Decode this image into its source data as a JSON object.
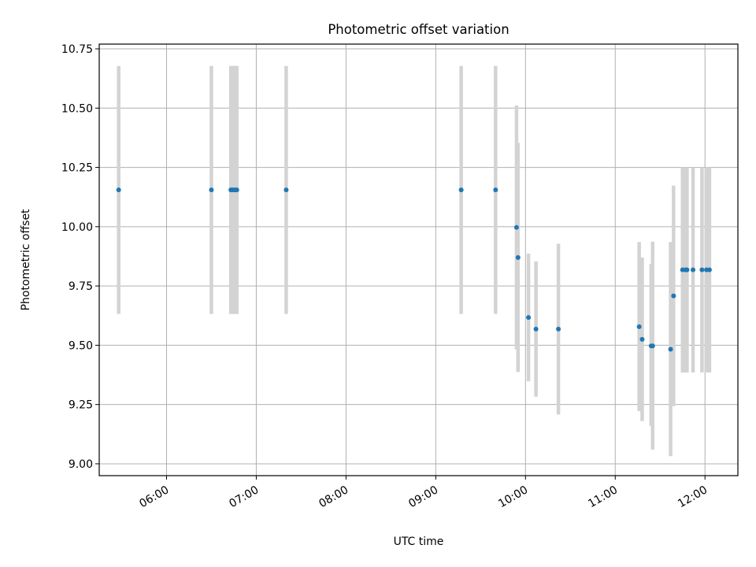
{
  "chart_data": {
    "type": "scatter",
    "title": "Photometric offset variation",
    "xlabel": "UTC time",
    "ylabel": "Photometric offset",
    "x_axis": "time",
    "xlim": [
      "05:15",
      "12:22"
    ],
    "ylim": [
      8.95,
      10.77
    ],
    "x_ticks": [
      "06:00",
      "07:00",
      "08:00",
      "09:00",
      "10:00",
      "11:00",
      "12:00"
    ],
    "y_ticks": [
      "9.00",
      "9.25",
      "9.50",
      "9.75",
      "10.00",
      "10.25",
      "10.50",
      "10.75"
    ],
    "grid": true,
    "point_color": "#1f77b4",
    "errorbar_color": "#d3d3d3",
    "points": [
      {
        "time": "05:28",
        "y": 10.155,
        "ymin": 9.632,
        "ymax": 10.678
      },
      {
        "time": "06:30",
        "y": 10.155,
        "ymin": 9.632,
        "ymax": 10.678
      },
      {
        "time": "06:43",
        "y": 10.155,
        "ymin": 9.632,
        "ymax": 10.678
      },
      {
        "time": "06:44",
        "y": 10.155,
        "ymin": 9.632,
        "ymax": 10.678
      },
      {
        "time": "06:45",
        "y": 10.155,
        "ymin": 9.632,
        "ymax": 10.678
      },
      {
        "time": "06:46",
        "y": 10.155,
        "ymin": 9.632,
        "ymax": 10.678
      },
      {
        "time": "06:47",
        "y": 10.155,
        "ymin": 9.632,
        "ymax": 10.678
      },
      {
        "time": "07:20",
        "y": 10.155,
        "ymin": 9.632,
        "ymax": 10.678
      },
      {
        "time": "09:17",
        "y": 10.155,
        "ymin": 9.632,
        "ymax": 10.678
      },
      {
        "time": "09:40",
        "y": 10.155,
        "ymin": 9.632,
        "ymax": 10.678
      },
      {
        "time": "09:54",
        "y": 9.997,
        "ymin": 9.482,
        "ymax": 10.511
      },
      {
        "time": "09:55",
        "y": 9.87,
        "ymin": 9.387,
        "ymax": 10.353
      },
      {
        "time": "10:02",
        "y": 9.617,
        "ymin": 9.348,
        "ymax": 9.886
      },
      {
        "time": "10:07",
        "y": 9.568,
        "ymin": 9.283,
        "ymax": 9.853
      },
      {
        "time": "10:22",
        "y": 9.568,
        "ymin": 9.208,
        "ymax": 9.928
      },
      {
        "time": "11:16",
        "y": 9.578,
        "ymin": 9.222,
        "ymax": 9.935
      },
      {
        "time": "11:18",
        "y": 9.525,
        "ymin": 9.18,
        "ymax": 9.87
      },
      {
        "time": "11:24",
        "y": 9.497,
        "ymin": 9.16,
        "ymax": 9.843
      },
      {
        "time": "11:25",
        "y": 9.497,
        "ymin": 9.06,
        "ymax": 9.937
      },
      {
        "time": "11:37",
        "y": 9.483,
        "ymin": 9.032,
        "ymax": 9.935
      },
      {
        "time": "11:39",
        "y": 9.708,
        "ymin": 9.243,
        "ymax": 10.173
      },
      {
        "time": "11:45",
        "y": 9.818,
        "ymin": 9.385,
        "ymax": 10.25
      },
      {
        "time": "11:47",
        "y": 9.818,
        "ymin": 9.385,
        "ymax": 10.25
      },
      {
        "time": "11:48",
        "y": 9.818,
        "ymin": 9.385,
        "ymax": 10.25
      },
      {
        "time": "11:52",
        "y": 9.818,
        "ymin": 9.385,
        "ymax": 10.25
      },
      {
        "time": "11:58",
        "y": 9.818,
        "ymin": 9.385,
        "ymax": 10.25
      },
      {
        "time": "12:01",
        "y": 9.818,
        "ymin": 9.385,
        "ymax": 10.25
      },
      {
        "time": "12:03",
        "y": 9.818,
        "ymin": 9.385,
        "ymax": 10.25
      }
    ]
  }
}
